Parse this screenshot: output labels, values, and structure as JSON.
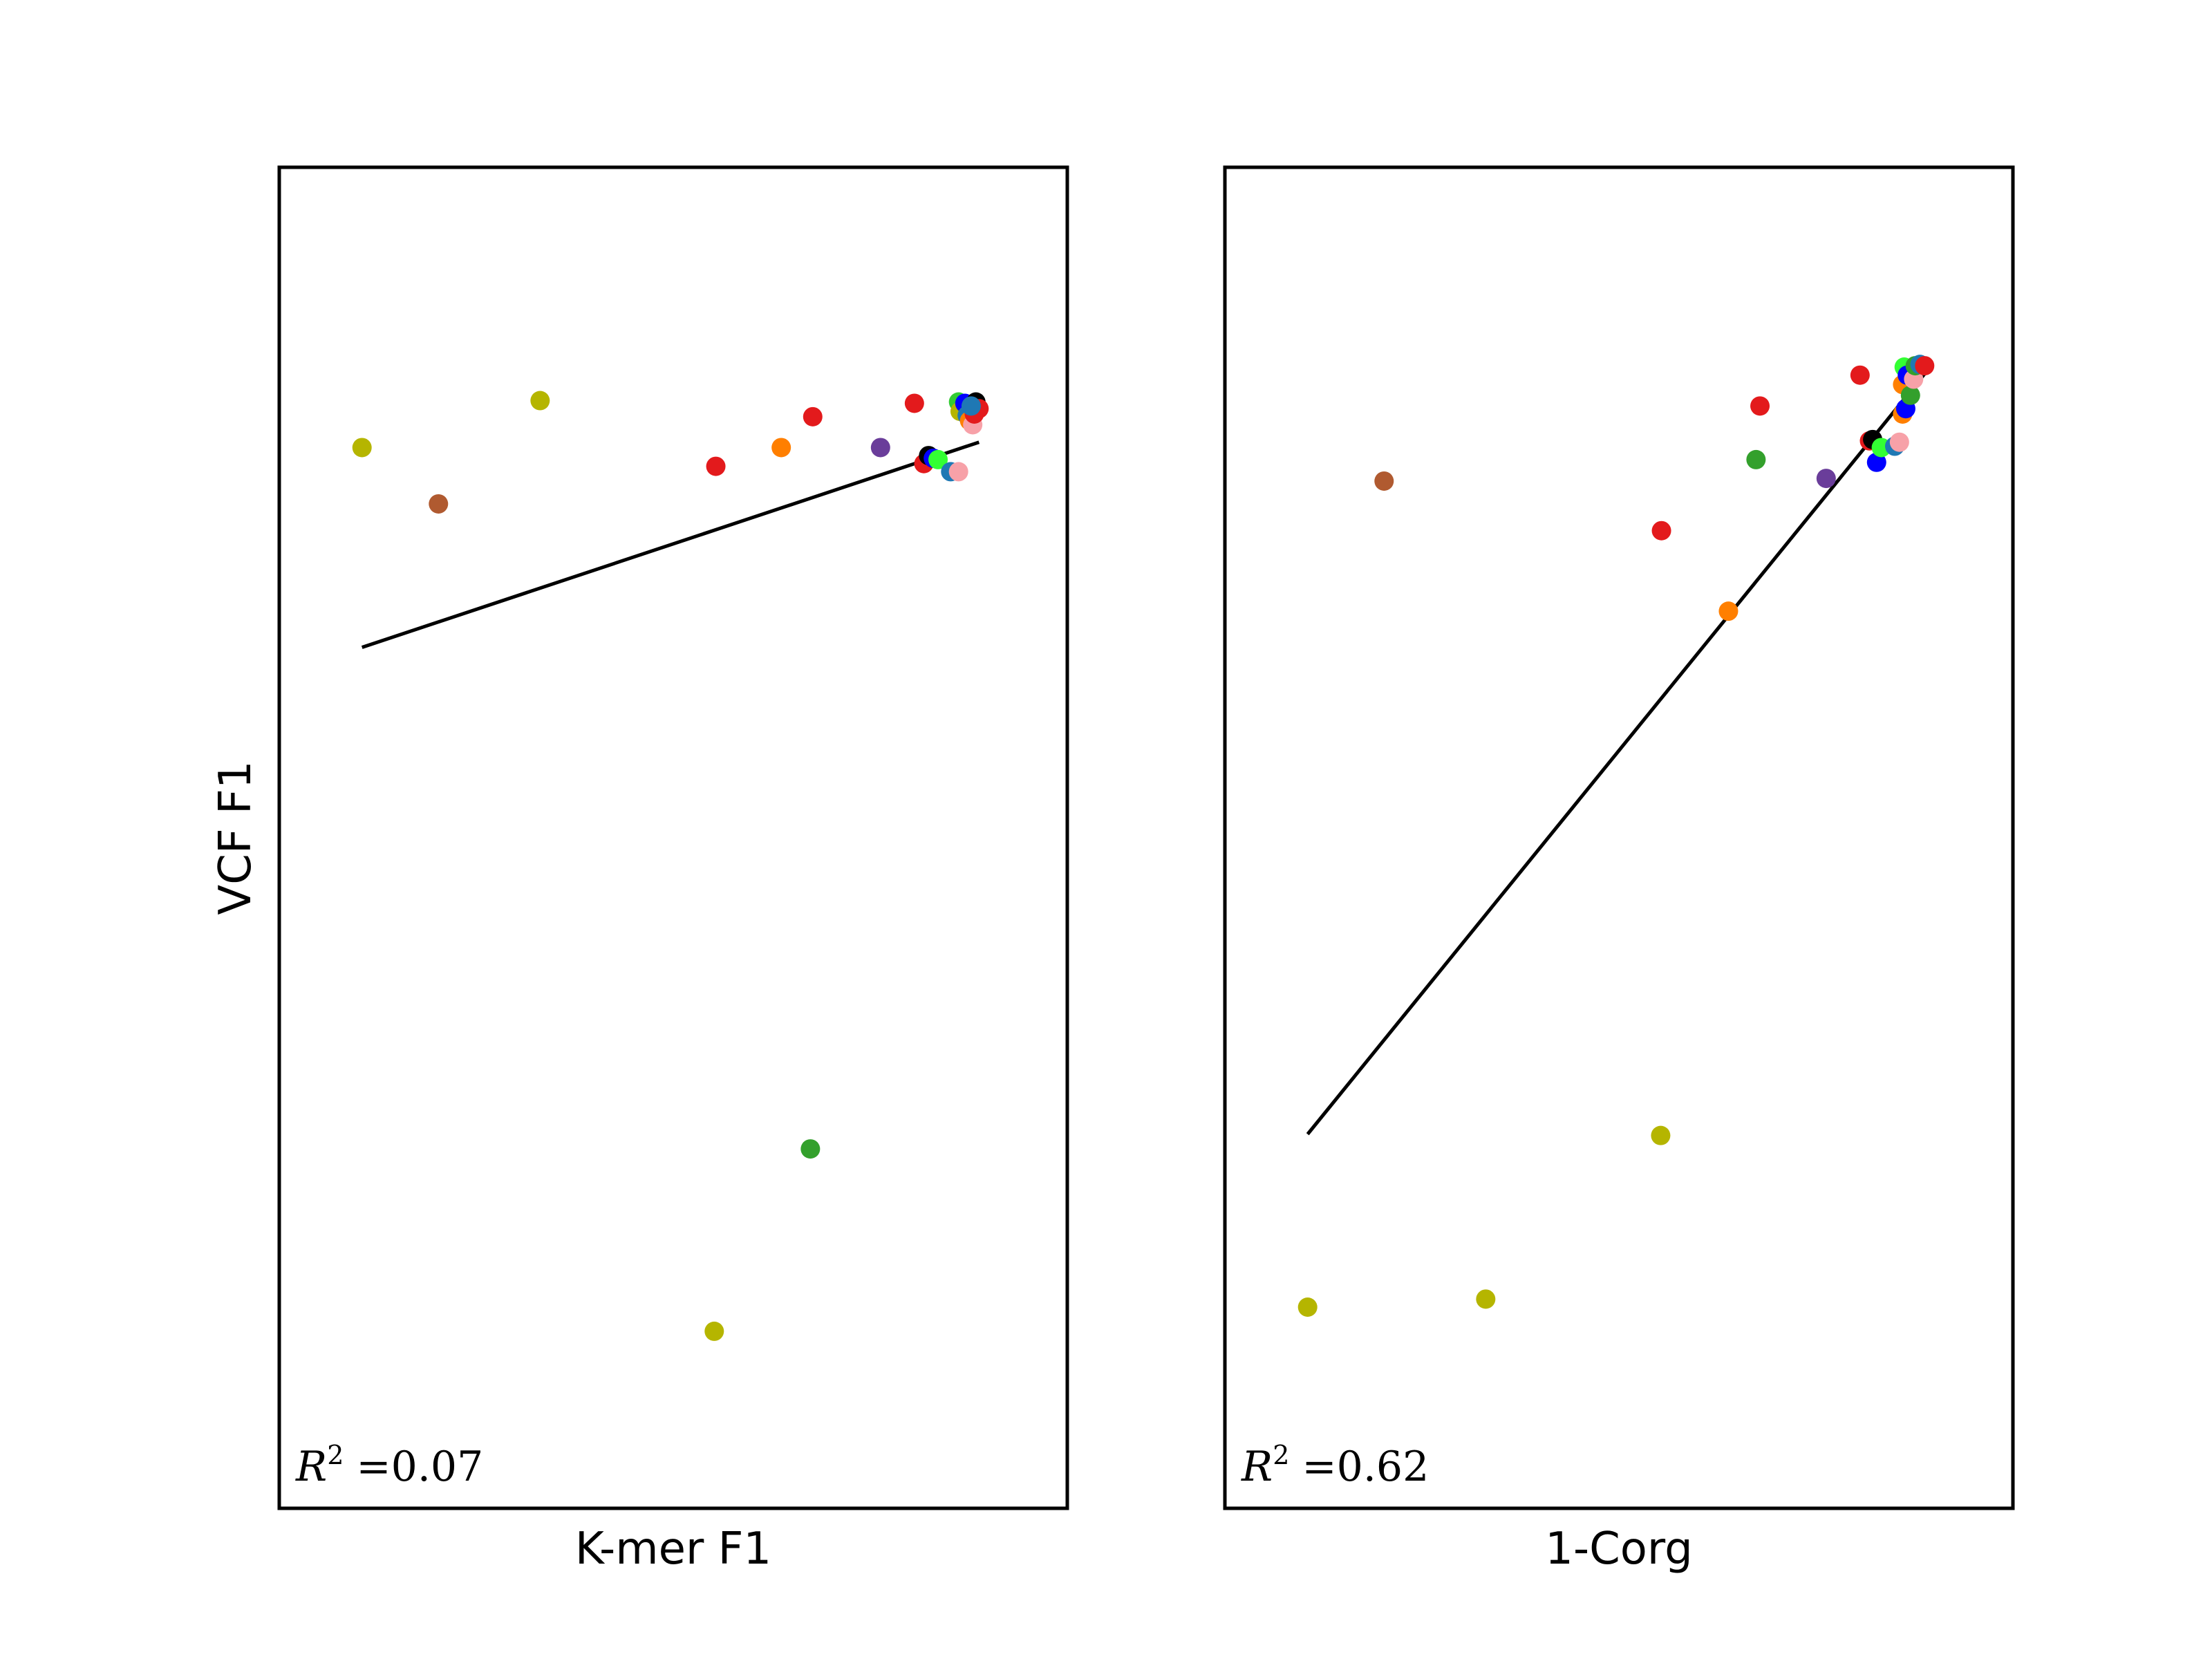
{
  "chart_data": [
    {
      "type": "scatter",
      "xlabel": "K-mer F1",
      "ylabel": "VCF F1",
      "annotation": {
        "symbol": "R",
        "superscript": "2",
        "equals": "=",
        "value": "0.07"
      },
      "xlim": [
        0,
        1
      ],
      "ylim": [
        0,
        1
      ],
      "grid": false,
      "fit_line": {
        "x": [
          0.105,
          0.888
        ],
        "y": [
          0.642,
          0.795
        ]
      },
      "points": [
        {
          "x": 0.105,
          "y": 0.791,
          "color": "#b5b500"
        },
        {
          "x": 0.202,
          "y": 0.749,
          "color": "#b05a30"
        },
        {
          "x": 0.331,
          "y": 0.826,
          "color": "#b5b500"
        },
        {
          "x": 0.554,
          "y": 0.777,
          "color": "#e31a1c"
        },
        {
          "x": 0.637,
          "y": 0.791,
          "color": "#ff7f00"
        },
        {
          "x": 0.677,
          "y": 0.814,
          "color": "#e31a1c"
        },
        {
          "x": 0.763,
          "y": 0.791,
          "color": "#6a3d9a"
        },
        {
          "x": 0.806,
          "y": 0.824,
          "color": "#e31a1c"
        },
        {
          "x": 0.818,
          "y": 0.779,
          "color": "#e31a1c"
        },
        {
          "x": 0.824,
          "y": 0.785,
          "color": "#000000"
        },
        {
          "x": 0.83,
          "y": 0.783,
          "color": "#0000ff"
        },
        {
          "x": 0.836,
          "y": 0.782,
          "color": "#33ff33"
        },
        {
          "x": 0.852,
          "y": 0.773,
          "color": "#1f78b4"
        },
        {
          "x": 0.862,
          "y": 0.773,
          "color": "#f7a1a8"
        },
        {
          "x": 0.862,
          "y": 0.825,
          "color": "#33cc33"
        },
        {
          "x": 0.864,
          "y": 0.818,
          "color": "#b5b500"
        },
        {
          "x": 0.87,
          "y": 0.824,
          "color": "#0000ff"
        },
        {
          "x": 0.873,
          "y": 0.815,
          "color": "#1f78b4"
        },
        {
          "x": 0.876,
          "y": 0.811,
          "color": "#ff7f00"
        },
        {
          "x": 0.88,
          "y": 0.808,
          "color": "#f7a1a8"
        },
        {
          "x": 0.882,
          "y": 0.816,
          "color": "#e31a1c"
        },
        {
          "x": 0.884,
          "y": 0.825,
          "color": "#000000"
        },
        {
          "x": 0.888,
          "y": 0.82,
          "color": "#e31a1c"
        },
        {
          "x": 0.878,
          "y": 0.822,
          "color": "#1f78b4"
        },
        {
          "x": 0.674,
          "y": 0.268,
          "color": "#33a02c"
        },
        {
          "x": 0.552,
          "y": 0.132,
          "color": "#b5b500"
        }
      ]
    },
    {
      "type": "scatter",
      "xlabel": "1-Corg",
      "ylabel": "",
      "annotation": {
        "symbol": "R",
        "superscript": "2",
        "equals": "=",
        "value": "0.62"
      },
      "xlim": [
        0,
        1
      ],
      "ylim": [
        0,
        1
      ],
      "grid": false,
      "fit_line": {
        "x": [
          0.105,
          0.888
        ],
        "y": [
          0.279,
          0.846
        ]
      },
      "points": [
        {
          "x": 0.105,
          "y": 0.15,
          "color": "#b5b500"
        },
        {
          "x": 0.331,
          "y": 0.156,
          "color": "#b5b500"
        },
        {
          "x": 0.553,
          "y": 0.278,
          "color": "#b5b500"
        },
        {
          "x": 0.202,
          "y": 0.766,
          "color": "#b05a30"
        },
        {
          "x": 0.554,
          "y": 0.729,
          "color": "#e31a1c"
        },
        {
          "x": 0.639,
          "y": 0.669,
          "color": "#ff7f00"
        },
        {
          "x": 0.674,
          "y": 0.782,
          "color": "#33a02c"
        },
        {
          "x": 0.679,
          "y": 0.822,
          "color": "#e31a1c"
        },
        {
          "x": 0.763,
          "y": 0.768,
          "color": "#6a3d9a"
        },
        {
          "x": 0.806,
          "y": 0.845,
          "color": "#e31a1c"
        },
        {
          "x": 0.818,
          "y": 0.796,
          "color": "#e31a1c"
        },
        {
          "x": 0.822,
          "y": 0.797,
          "color": "#000000"
        },
        {
          "x": 0.827,
          "y": 0.78,
          "color": "#0000ff"
        },
        {
          "x": 0.833,
          "y": 0.791,
          "color": "#33ff33"
        },
        {
          "x": 0.85,
          "y": 0.792,
          "color": "#1f78b4"
        },
        {
          "x": 0.856,
          "y": 0.795,
          "color": "#f7a1a8"
        },
        {
          "x": 0.86,
          "y": 0.816,
          "color": "#ff7f00"
        },
        {
          "x": 0.864,
          "y": 0.82,
          "color": "#0000ff"
        },
        {
          "x": 0.86,
          "y": 0.838,
          "color": "#ff7f00"
        },
        {
          "x": 0.862,
          "y": 0.851,
          "color": "#33ff33"
        },
        {
          "x": 0.866,
          "y": 0.845,
          "color": "#0000ff"
        },
        {
          "x": 0.87,
          "y": 0.83,
          "color": "#33a02c"
        },
        {
          "x": 0.874,
          "y": 0.842,
          "color": "#f7a1a8"
        },
        {
          "x": 0.876,
          "y": 0.852,
          "color": "#33a02c"
        },
        {
          "x": 0.882,
          "y": 0.853,
          "color": "#1f78b4"
        },
        {
          "x": 0.888,
          "y": 0.852,
          "color": "#e31a1c"
        }
      ]
    }
  ]
}
